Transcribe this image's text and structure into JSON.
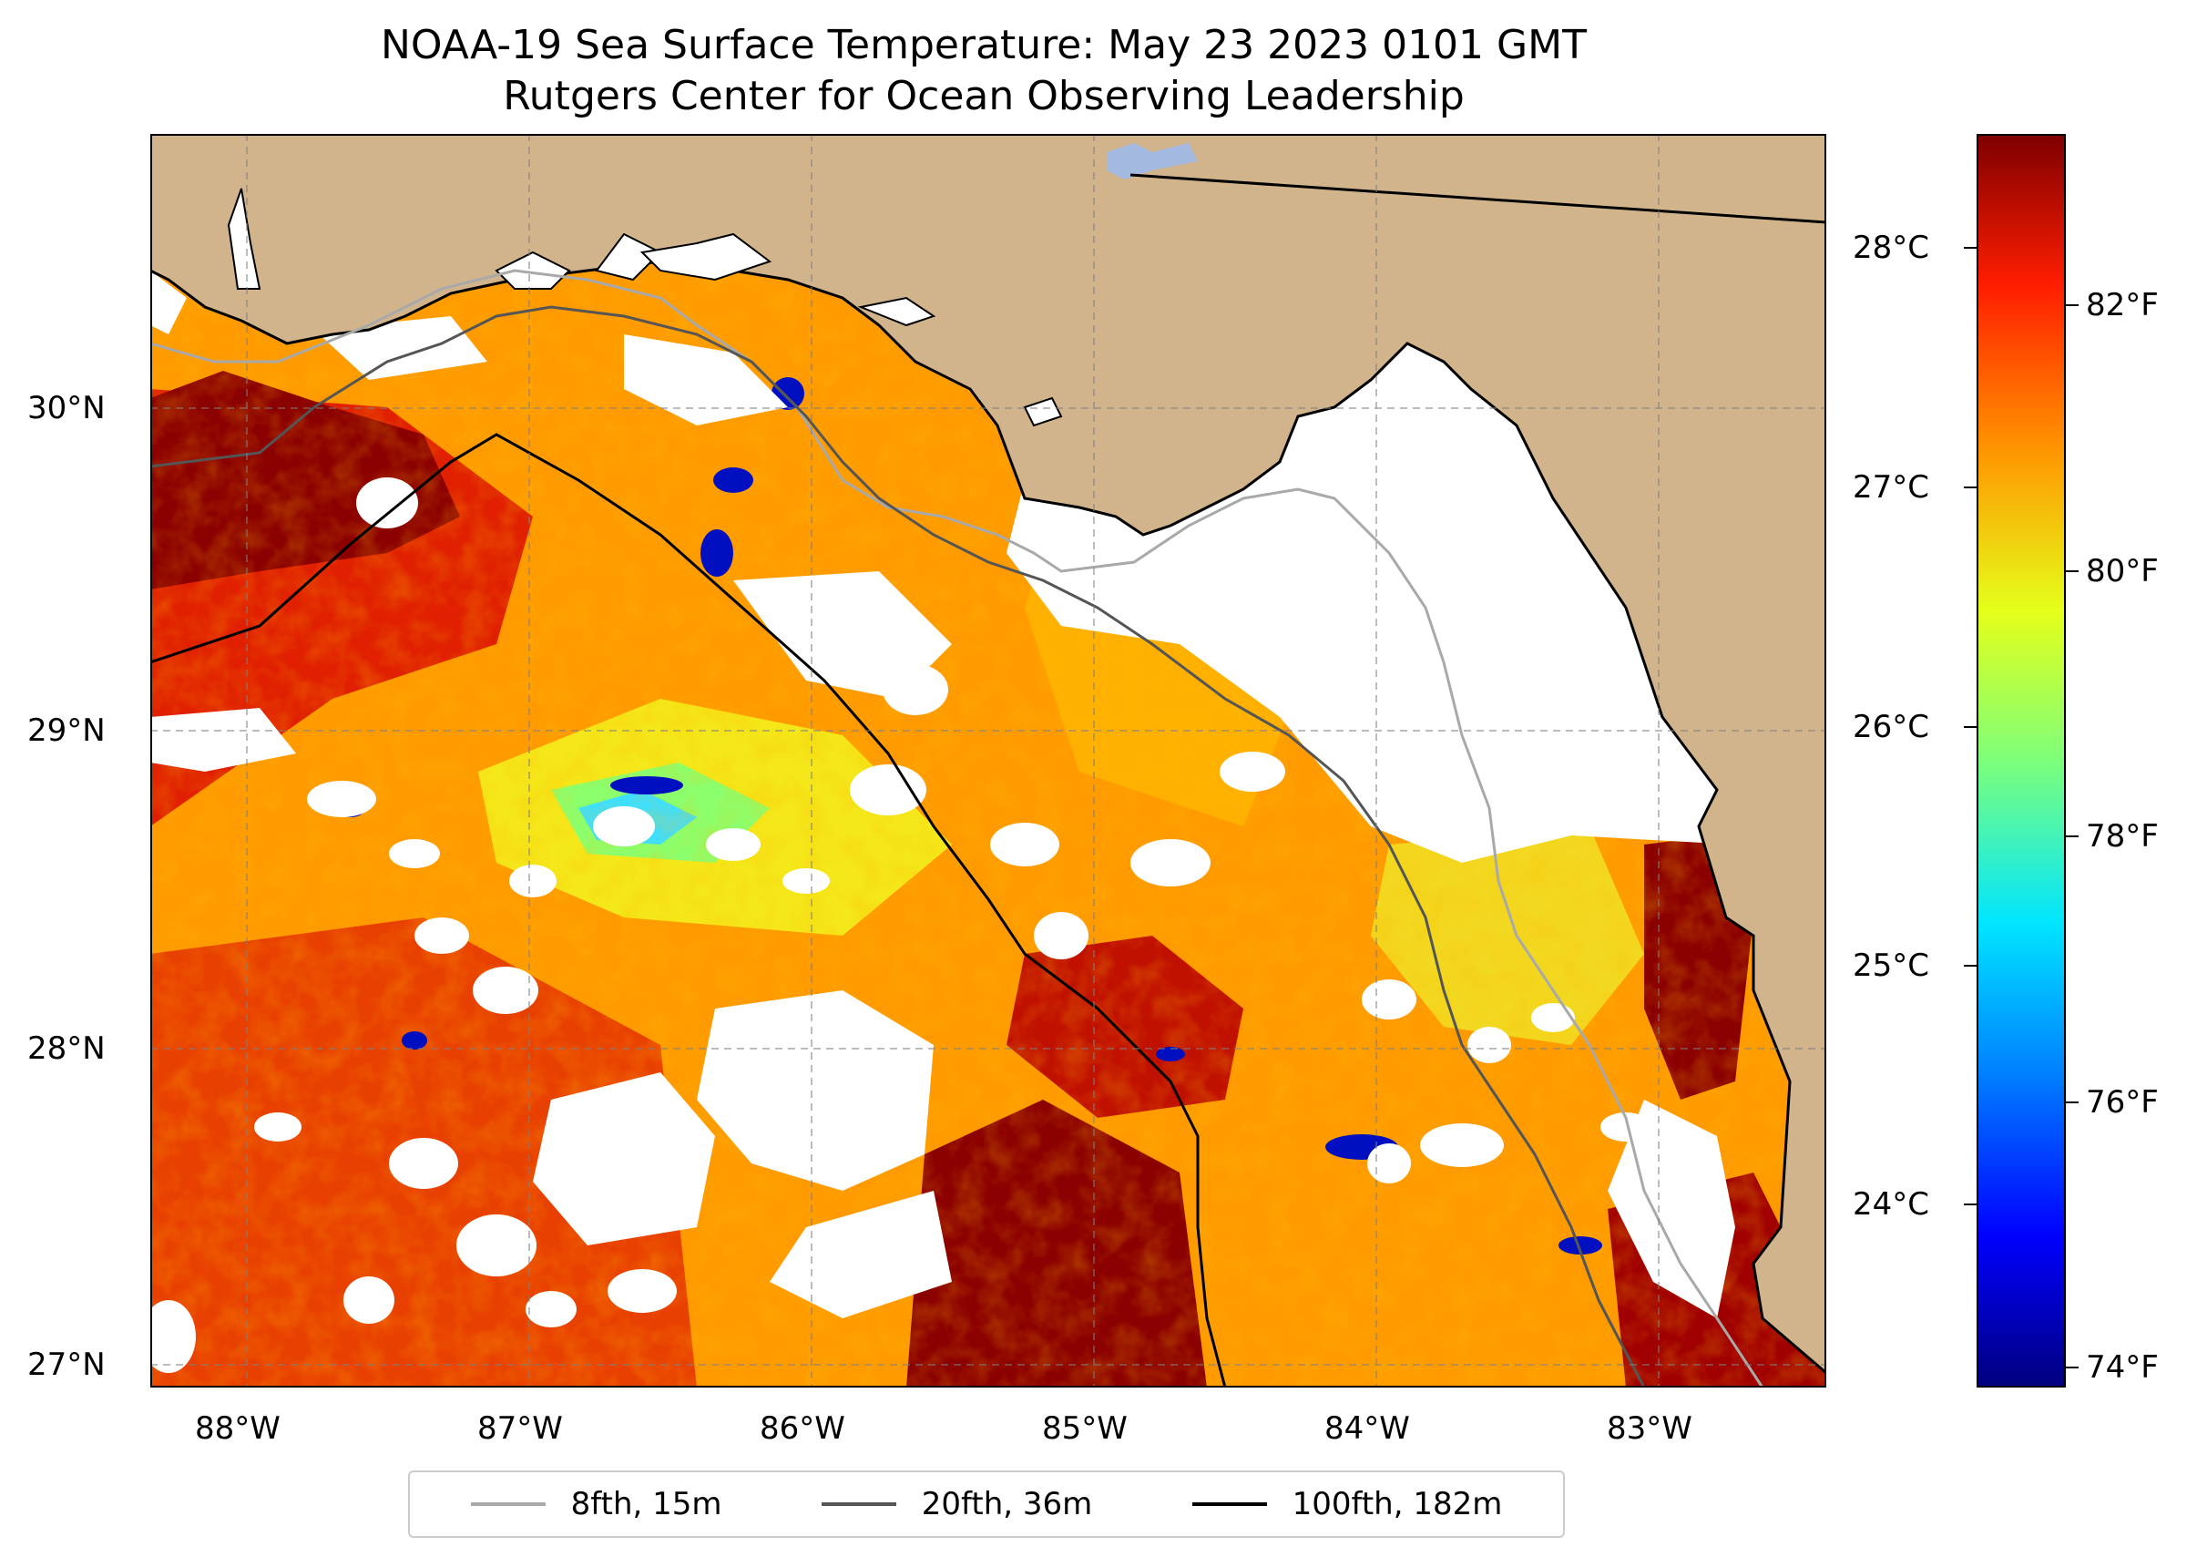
{
  "title": {
    "line1": "NOAA-19 Sea Surface Temperature: May 23 2023 0101 GMT",
    "line2": "Rutgers Center for Ocean Observing Leadership"
  },
  "map": {
    "region": "Northeastern Gulf of Mexico / Florida Big Bend",
    "extent": {
      "lon": [
        -88.3,
        -82.4
      ],
      "lat": [
        26.95,
        30.85
      ]
    },
    "lon_ticks": [
      {
        "lon": -88,
        "label": "88°W"
      },
      {
        "lon": -87,
        "label": "87°W"
      },
      {
        "lon": -86,
        "label": "86°W"
      },
      {
        "lon": -85,
        "label": "85°W"
      },
      {
        "lon": -84,
        "label": "84°W"
      },
      {
        "lon": -83,
        "label": "83°W"
      }
    ],
    "lat_ticks": [
      {
        "lat": 30,
        "label": "30°N"
      },
      {
        "lat": 29,
        "label": "29°N"
      },
      {
        "lat": 28,
        "label": "28°N"
      },
      {
        "lat": 27,
        "label": "27°N"
      }
    ],
    "land_color": "#d2b48c",
    "cloud_color": "#ffffff"
  },
  "colorbar": {
    "colormap": "jet",
    "celsius_ticks": [
      {
        "value": 28,
        "label": "28°C"
      },
      {
        "value": 27,
        "label": "27°C"
      },
      {
        "value": 26,
        "label": "26°C"
      },
      {
        "value": 25,
        "label": "25°C"
      },
      {
        "value": 24,
        "label": "24°C"
      }
    ],
    "fahrenheit_ticks": [
      {
        "value": 82,
        "label": "82°F"
      },
      {
        "value": 80,
        "label": "80°F"
      },
      {
        "value": 78,
        "label": "78°F"
      },
      {
        "value": 76,
        "label": "76°F"
      },
      {
        "value": 74,
        "label": "74°F"
      }
    ],
    "range_f": [
      73.6,
      83.1
    ]
  },
  "legend": {
    "items": [
      {
        "label": "8fth, 15m",
        "color": "#a9a9a9"
      },
      {
        "label": "20fth, 36m",
        "color": "#555555"
      },
      {
        "label": "100fth, 182m",
        "color": "#000000"
      }
    ]
  }
}
